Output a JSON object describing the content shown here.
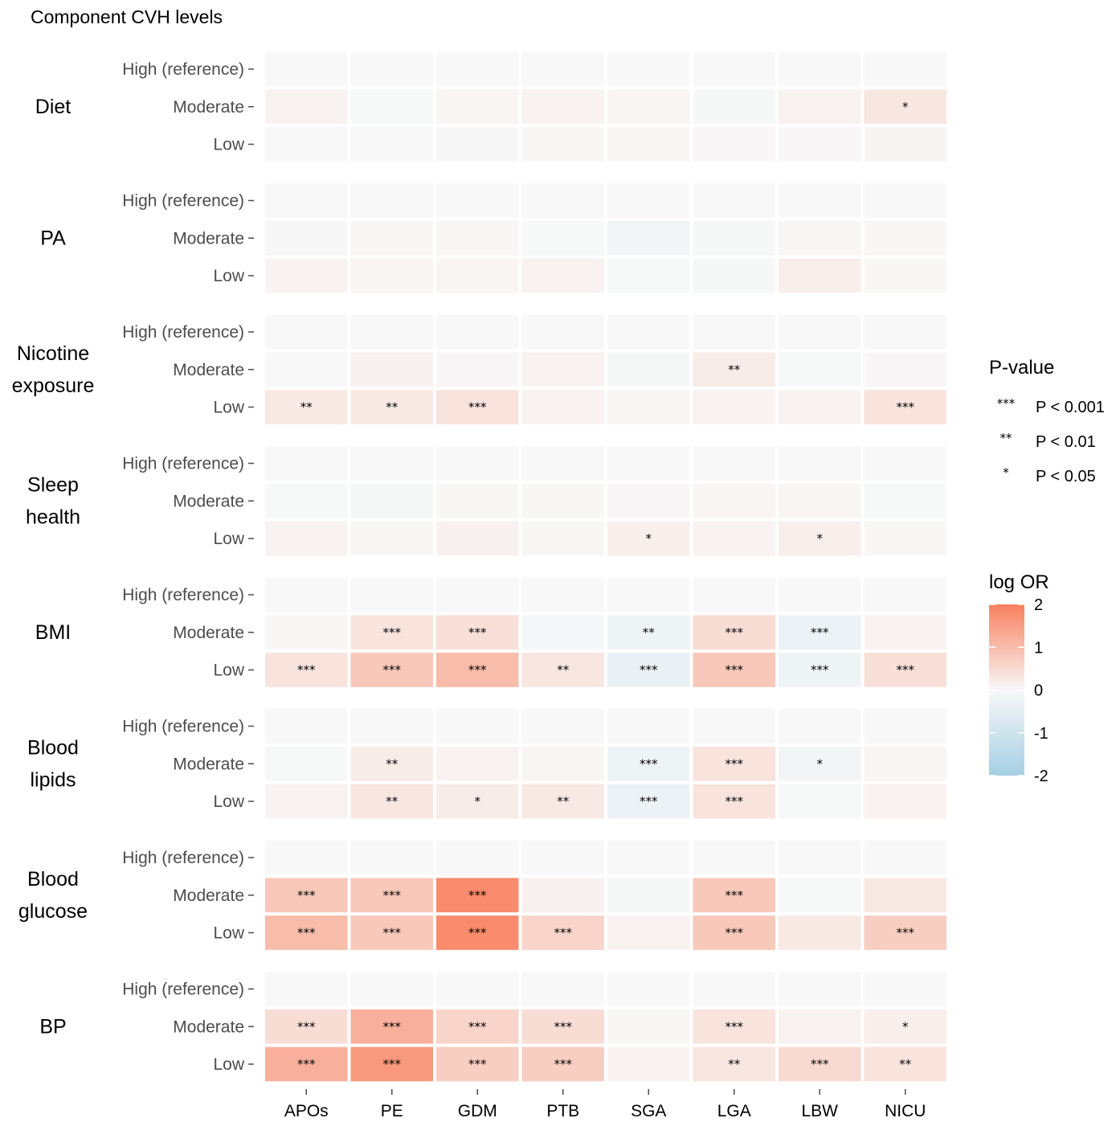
{
  "chart_data": {
    "type": "heatmap",
    "title": "Component CVH levels",
    "categories": [
      "APOs",
      "PE",
      "GDM",
      "PTB",
      "SGA",
      "LGA",
      "LBW",
      "NICU"
    ],
    "levels": [
      "High (reference)",
      "Moderate",
      "Low"
    ],
    "groups": [
      {
        "name": "Diet",
        "values": [
          [
            0,
            0,
            0,
            0,
            0,
            0,
            0,
            0
          ],
          [
            0.1,
            -0.02,
            0.05,
            0.08,
            0.05,
            -0.05,
            0.1,
            0.3
          ],
          [
            0,
            0,
            -0.03,
            0.02,
            0.02,
            0.03,
            0.03,
            0.06
          ]
        ],
        "stars": [
          [
            "",
            "",
            "",
            "",
            "",
            "",
            "",
            ""
          ],
          [
            "",
            "",
            "",
            "",
            "",
            "",
            "",
            "*"
          ],
          [
            "",
            "",
            "",
            "",
            "",
            "",
            "",
            ""
          ]
        ]
      },
      {
        "name": "PA",
        "values": [
          [
            0,
            0,
            0,
            0,
            0,
            0,
            0,
            0
          ],
          [
            -0.03,
            0.02,
            0.05,
            -0.02,
            -0.15,
            -0.05,
            0.05,
            0.02
          ],
          [
            0.08,
            0.05,
            0.05,
            0.1,
            -0.02,
            -0.05,
            0.15,
            0.02
          ]
        ],
        "stars": [
          [
            "",
            "",
            "",
            "",
            "",
            "",
            "",
            ""
          ],
          [
            "",
            "",
            "",
            "",
            "",
            "",
            "",
            ""
          ],
          [
            "",
            "",
            "",
            "",
            "",
            "",
            "",
            ""
          ]
        ]
      },
      {
        "name": "Nicotine exposure",
        "values": [
          [
            0,
            0,
            0,
            0,
            0,
            0,
            0,
            0
          ],
          [
            0,
            0.12,
            0.03,
            0.1,
            -0.05,
            0.2,
            -0.02,
            0.03
          ],
          [
            0.25,
            0.25,
            0.35,
            0.1,
            0.05,
            0.08,
            0.1,
            0.35
          ]
        ],
        "stars": [
          [
            "",
            "",
            "",
            "",
            "",
            "",
            "",
            ""
          ],
          [
            "",
            "",
            "",
            "",
            "",
            "**",
            "",
            ""
          ],
          [
            "**",
            "**",
            "***",
            "",
            "",
            "",
            "",
            "***"
          ]
        ]
      },
      {
        "name": "Sleep health",
        "values": [
          [
            0,
            0,
            0,
            0,
            0,
            0,
            0,
            0
          ],
          [
            -0.02,
            -0.05,
            0.02,
            0.02,
            0.03,
            0.05,
            0.05,
            -0.02
          ],
          [
            0.08,
            0.02,
            0.12,
            0.02,
            0.15,
            0.08,
            0.15,
            0.02
          ]
        ],
        "stars": [
          [
            "",
            "",
            "",
            "",
            "",
            "",
            "",
            ""
          ],
          [
            "",
            "",
            "",
            "",
            "",
            "",
            "",
            ""
          ],
          [
            "",
            "",
            "",
            "",
            "*",
            "",
            "*",
            ""
          ]
        ]
      },
      {
        "name": "BMI",
        "values": [
          [
            0,
            0,
            0,
            0,
            0,
            0,
            0,
            0
          ],
          [
            0.02,
            0.35,
            0.4,
            -0.1,
            -0.25,
            0.45,
            -0.3,
            0.08
          ],
          [
            0.35,
            0.8,
            1.0,
            0.3,
            -0.35,
            0.8,
            -0.25,
            0.4
          ]
        ],
        "stars": [
          [
            "",
            "",
            "",
            "",
            "",
            "",
            "",
            ""
          ],
          [
            "",
            "***",
            "***",
            "",
            "**",
            "***",
            "***",
            ""
          ],
          [
            "***",
            "***",
            "***",
            "**",
            "***",
            "***",
            "***",
            "***"
          ]
        ]
      },
      {
        "name": "Blood lipids",
        "values": [
          [
            0,
            0,
            0,
            0,
            0,
            0,
            0,
            0
          ],
          [
            -0.02,
            0.2,
            0.08,
            0.05,
            -0.25,
            0.35,
            -0.15,
            0.05
          ],
          [
            0.08,
            0.3,
            0.2,
            0.25,
            -0.3,
            0.35,
            -0.02,
            0.1
          ]
        ],
        "stars": [
          [
            "",
            "",
            "",
            "",
            "",
            "",
            "",
            ""
          ],
          [
            "",
            "**",
            "",
            "",
            "***",
            "***",
            "*",
            ""
          ],
          [
            "",
            "**",
            "*",
            "**",
            "***",
            "***",
            "",
            ""
          ]
        ]
      },
      {
        "name": "Blood glucose",
        "values": [
          [
            0,
            0,
            0,
            0,
            0,
            0,
            0,
            0
          ],
          [
            0.8,
            0.8,
            1.8,
            0.12,
            -0.05,
            0.8,
            -0.02,
            0.25
          ],
          [
            1.0,
            0.8,
            1.8,
            0.6,
            0.1,
            0.8,
            0.25,
            0.7
          ]
        ],
        "stars": [
          [
            "",
            "",
            "",
            "",
            "",
            "",
            "",
            ""
          ],
          [
            "***",
            "***",
            "***",
            "",
            "",
            "***",
            "",
            ""
          ],
          [
            "***",
            "***",
            "***",
            "***",
            "",
            "***",
            "",
            "***"
          ]
        ]
      },
      {
        "name": "BP",
        "values": [
          [
            0,
            0,
            0,
            0,
            0,
            0,
            0,
            0
          ],
          [
            0.45,
            1.2,
            0.6,
            0.45,
            0.02,
            0.35,
            0.1,
            0.15
          ],
          [
            1.2,
            1.6,
            0.7,
            0.7,
            0.08,
            0.3,
            0.5,
            0.35
          ]
        ],
        "stars": [
          [
            "",
            "",
            "",
            "",
            "",
            "",
            "",
            ""
          ],
          [
            "***",
            "***",
            "***",
            "***",
            "",
            "***",
            "",
            "*"
          ],
          [
            "***",
            "***",
            "***",
            "***",
            "",
            "**",
            "***",
            "**"
          ]
        ]
      }
    ],
    "legend_pvalue": {
      "title": "P-value",
      "items": [
        {
          "symbol": "***",
          "label": "P < 0.001"
        },
        {
          "symbol": "**",
          "label": "P < 0.01"
        },
        {
          "symbol": "*",
          "label": "P < 0.05"
        }
      ]
    },
    "legend_color": {
      "title": "log OR",
      "limits": [
        -2,
        2
      ],
      "ticks": [
        2,
        1,
        0,
        -1,
        -2
      ],
      "low_color": "#a6cfe3",
      "mid_color": "#f8f8f8",
      "high_color": "#f8805e"
    },
    "grid": false
  }
}
